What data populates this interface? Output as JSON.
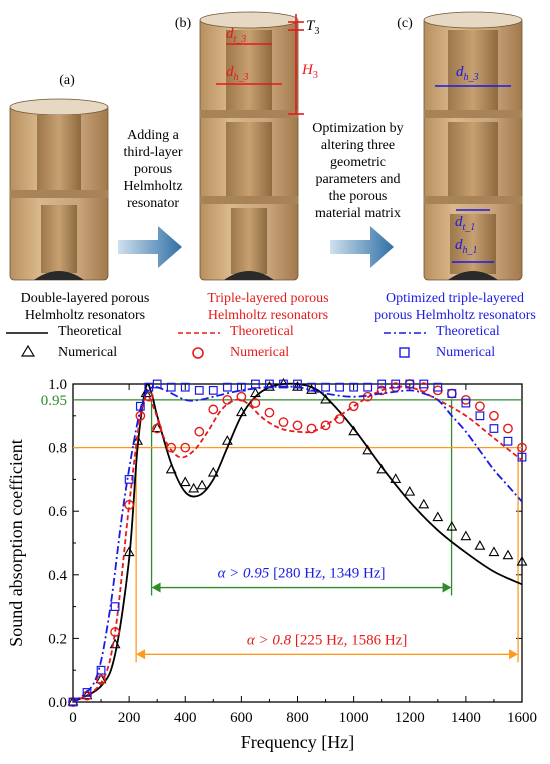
{
  "panels": {
    "a": {
      "label": "(a)",
      "caption_l1": "Double-layered porous",
      "caption_l2": "Helmholtz resonators"
    },
    "b": {
      "label": "(b)",
      "caption_l1": "Triple-layered porous",
      "caption_l2": "Helmholtz resonators"
    },
    "c": {
      "label": "(c)",
      "caption_l1": "Optimized triple-layered",
      "caption_l2": "porous Helmholtz resonators"
    }
  },
  "arrow_text_1": [
    "Adding a",
    "third-layer",
    "porous",
    "Helmholtz",
    "resonator"
  ],
  "arrow_text_2": [
    "Optimization by",
    "altering three",
    "geometric",
    "parameters and",
    "the porous",
    "material matrix"
  ],
  "dimension_labels": {
    "dt3": "d",
    "dt3_sub": "t_3",
    "dh3": "d",
    "dh3_sub": "h_3",
    "T3": "T",
    "T3_sub": "3",
    "H3": "H",
    "H3_sub": "3",
    "dh3_c": "d",
    "dh3_c_sub": "h_3",
    "dt1": "d",
    "dt1_sub": "t_1",
    "dh1": "d",
    "dh1_sub": "h_1"
  },
  "legend": {
    "black": {
      "theoretical": "Theoretical",
      "numerical": "Numerical"
    },
    "red": {
      "theoretical": "Theoretical",
      "numerical": "Numerical"
    },
    "blue": {
      "theoretical": "Theoretical",
      "numerical": "Numerical"
    }
  },
  "colors": {
    "black": "#000000",
    "red": "#e61a1a",
    "blue": "#1a1ae6",
    "green": "#2e8b2e",
    "orange": "#ff9a1f",
    "wood": "#c9a47a"
  },
  "chart_data": {
    "type": "line",
    "xlabel": "Frequency [Hz]",
    "ylabel": "Sound absorption coefficient",
    "xlim": [
      0,
      1600
    ],
    "ylim": [
      0,
      1.0
    ],
    "x_ticks": [
      "0",
      "200",
      "400",
      "600",
      "800",
      "1000",
      "1200",
      "1400",
      "1600"
    ],
    "y_ticks": [
      "0.0",
      "0.2",
      "0.4",
      "0.6",
      "0.8",
      "1.0"
    ],
    "extra_y_tick": "0.95",
    "series": [
      {
        "name": "Double-layered porous Helmholtz resonators",
        "style": "solid",
        "color": "black",
        "kind": "theoretical",
        "x": [
          0,
          100,
          150,
          200,
          230,
          260,
          280,
          300,
          350,
          400,
          450,
          500,
          550,
          600,
          650,
          700,
          750,
          800,
          850,
          900,
          1000,
          1100,
          1200,
          1300,
          1400,
          1500,
          1600
        ],
        "y": [
          0.0,
          0.05,
          0.15,
          0.45,
          0.8,
          0.99,
          0.97,
          0.9,
          0.75,
          0.66,
          0.65,
          0.7,
          0.8,
          0.9,
          0.96,
          0.99,
          1.0,
          1.0,
          0.99,
          0.96,
          0.86,
          0.74,
          0.63,
          0.54,
          0.47,
          0.41,
          0.37
        ]
      },
      {
        "name": "Double-layered porous Helmholtz resonators",
        "style": "triangle",
        "color": "black",
        "kind": "numerical",
        "x": [
          0,
          50,
          100,
          150,
          200,
          230,
          260,
          300,
          350,
          400,
          430,
          460,
          500,
          550,
          600,
          650,
          700,
          750,
          800,
          850,
          900,
          1000,
          1050,
          1100,
          1150,
          1200,
          1250,
          1300,
          1350,
          1400,
          1450,
          1500,
          1550,
          1600
        ],
        "y": [
          0.0,
          0.02,
          0.07,
          0.18,
          0.47,
          0.82,
          0.97,
          0.86,
          0.73,
          0.69,
          0.67,
          0.68,
          0.72,
          0.82,
          0.91,
          0.97,
          0.99,
          1.0,
          0.99,
          0.98,
          0.95,
          0.85,
          0.79,
          0.73,
          0.7,
          0.66,
          0.62,
          0.58,
          0.55,
          0.52,
          0.49,
          0.47,
          0.46,
          0.44
        ]
      },
      {
        "name": "Triple-layered porous Helmholtz resonators",
        "style": "dashed",
        "color": "red",
        "kind": "theoretical",
        "x": [
          0,
          100,
          150,
          200,
          240,
          265,
          290,
          330,
          380,
          430,
          480,
          530,
          580,
          620,
          680,
          740,
          800,
          850,
          900,
          1000,
          1100,
          1200,
          1300,
          1400,
          1500,
          1600
        ],
        "y": [
          0.0,
          0.06,
          0.22,
          0.62,
          0.9,
          0.96,
          0.92,
          0.82,
          0.77,
          0.79,
          0.85,
          0.92,
          0.95,
          0.94,
          0.89,
          0.86,
          0.85,
          0.85,
          0.87,
          0.93,
          0.98,
          0.99,
          0.95,
          0.9,
          0.83,
          0.76
        ]
      },
      {
        "name": "Triple-layered porous Helmholtz resonators",
        "style": "circle",
        "color": "red",
        "kind": "numerical",
        "x": [
          0,
          50,
          100,
          150,
          200,
          240,
          270,
          300,
          350,
          400,
          450,
          500,
          550,
          600,
          650,
          700,
          750,
          800,
          850,
          900,
          950,
          1000,
          1050,
          1100,
          1150,
          1200,
          1250,
          1300,
          1350,
          1400,
          1450,
          1500,
          1550,
          1600
        ],
        "y": [
          0.0,
          0.02,
          0.07,
          0.22,
          0.62,
          0.9,
          0.96,
          0.86,
          0.8,
          0.8,
          0.85,
          0.92,
          0.95,
          0.96,
          0.94,
          0.91,
          0.88,
          0.87,
          0.86,
          0.87,
          0.89,
          0.93,
          0.96,
          0.98,
          0.99,
          1.0,
          0.99,
          0.98,
          0.97,
          0.95,
          0.93,
          0.9,
          0.86,
          0.8
        ]
      },
      {
        "name": "Optimized triple-layered porous Helmholtz resonators",
        "style": "dashdot",
        "color": "blue",
        "kind": "theoretical",
        "x": [
          0,
          80,
          130,
          180,
          230,
          260,
          290,
          330,
          400,
          450,
          500,
          600,
          700,
          800,
          900,
          1000,
          1100,
          1200,
          1250,
          1300,
          1350,
          1400,
          1450,
          1500,
          1550,
          1600
        ],
        "y": [
          0.0,
          0.07,
          0.28,
          0.62,
          0.88,
          0.97,
          0.99,
          0.98,
          0.95,
          0.95,
          0.96,
          0.98,
          0.99,
          0.99,
          0.97,
          0.96,
          0.97,
          0.98,
          0.97,
          0.95,
          0.9,
          0.85,
          0.79,
          0.73,
          0.68,
          0.63
        ]
      },
      {
        "name": "Optimized triple-layered porous Helmholtz resonators",
        "style": "square",
        "color": "blue",
        "kind": "numerical",
        "x": [
          0,
          50,
          100,
          150,
          200,
          240,
          270,
          300,
          350,
          400,
          450,
          500,
          550,
          600,
          650,
          700,
          750,
          800,
          850,
          900,
          950,
          1000,
          1050,
          1100,
          1150,
          1200,
          1250,
          1300,
          1350,
          1400,
          1450,
          1500,
          1550,
          1600
        ],
        "y": [
          0.0,
          0.03,
          0.1,
          0.3,
          0.7,
          0.93,
          0.99,
          1.0,
          0.99,
          0.99,
          0.98,
          0.98,
          0.99,
          0.99,
          1.0,
          1.0,
          1.0,
          1.0,
          0.99,
          0.99,
          0.99,
          0.99,
          0.99,
          1.0,
          1.0,
          1.0,
          1.0,
          0.99,
          0.97,
          0.94,
          0.9,
          0.86,
          0.82,
          0.77
        ]
      }
    ],
    "annotations": [
      {
        "color": "green",
        "level": 0.95,
        "f_start": 280,
        "f_end": 1349,
        "label_prefix": "α > 0.95",
        "label_range": "[280 Hz, 1349 Hz]"
      },
      {
        "color": "orange",
        "level": 0.8,
        "f_start": 225,
        "f_end": 1586,
        "label_prefix": "α > 0.8",
        "label_range": "[225 Hz, 1586 Hz]"
      }
    ],
    "grid": false
  }
}
